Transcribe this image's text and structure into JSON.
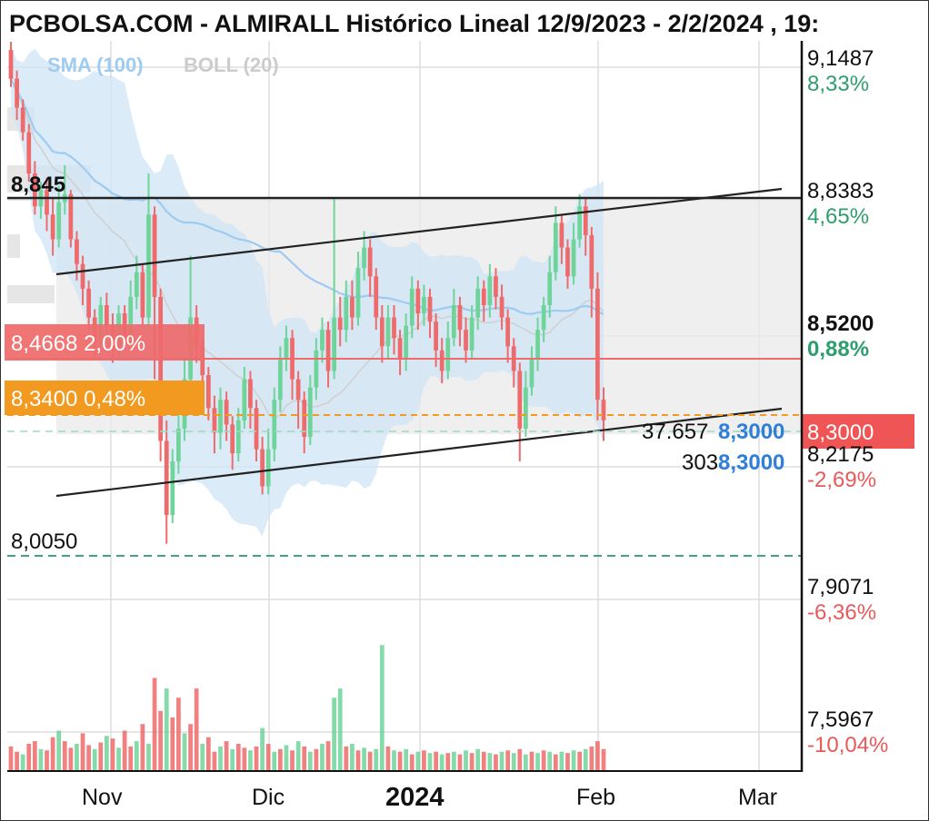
{
  "title": "PCBOLSA.COM - ALMIRALL Histórico Lineal 12/9/2023 - 2/2/2024 , 19:",
  "legend": {
    "sma": "SMA (100)",
    "boll": "BOLL (20)"
  },
  "colors": {
    "up": "#6fd49a",
    "down": "#ef6a6a",
    "sma": "#9ecbf1",
    "boll_fill": "#cfe4f6",
    "hline_red": "#ef6a6a",
    "hline_orange": "#f29a1f",
    "hline_green": "#3fa57a"
  },
  "chart_data": {
    "type": "candlestick",
    "ylim": [
      7.45,
      9.22
    ],
    "x_ticks": [
      "Nov",
      "Dic",
      "2024",
      "Feb",
      "Mar"
    ],
    "y_ticks": [
      {
        "value": "9,1487",
        "pct": "8,33%",
        "sign": "pos",
        "bold": false
      },
      {
        "value": "8,8383",
        "pct": "4,65%",
        "sign": "pos",
        "bold": false
      },
      {
        "value": "8,5200",
        "pct": "0,88%",
        "sign": "pos",
        "bold": true
      },
      {
        "value": "8,2175",
        "pct": "-2,69%",
        "sign": "neg",
        "bold": false
      },
      {
        "value": "7,9071",
        "pct": "-6,36%",
        "sign": "neg",
        "bold": false
      },
      {
        "value": "7,5967",
        "pct": "-10,04%",
        "sign": "neg",
        "bold": false
      }
    ],
    "candles": [
      [
        9.2,
        9.13,
        9.22,
        9.11
      ],
      [
        9.13,
        9.06,
        9.15,
        9.03
      ],
      [
        9.06,
        9.0,
        9.08,
        8.98
      ],
      [
        9.0,
        8.9,
        9.02,
        8.88
      ],
      [
        8.9,
        8.82,
        8.93,
        8.8
      ],
      [
        8.82,
        8.86,
        8.88,
        8.79
      ],
      [
        8.86,
        8.8,
        8.89,
        8.76
      ],
      [
        8.8,
        8.74,
        8.84,
        8.7
      ],
      [
        8.74,
        8.83,
        8.87,
        8.72
      ],
      [
        8.83,
        8.85,
        8.92,
        8.8
      ],
      [
        8.85,
        8.74,
        8.86,
        8.72
      ],
      [
        8.74,
        8.68,
        8.76,
        8.64
      ],
      [
        8.68,
        8.62,
        8.7,
        8.58
      ],
      [
        8.62,
        8.55,
        8.64,
        8.52
      ],
      [
        8.55,
        8.49,
        8.57,
        8.45
      ],
      [
        8.49,
        8.58,
        8.6,
        8.47
      ],
      [
        8.58,
        8.53,
        8.61,
        8.5
      ],
      [
        8.53,
        8.47,
        8.56,
        8.44
      ],
      [
        8.47,
        8.56,
        8.58,
        8.45
      ],
      [
        8.56,
        8.5,
        8.58,
        8.47
      ],
      [
        8.5,
        8.6,
        8.64,
        8.48
      ],
      [
        8.6,
        8.66,
        8.7,
        8.57
      ],
      [
        8.66,
        8.55,
        8.68,
        8.53
      ],
      [
        8.55,
        8.8,
        8.9,
        8.52
      ],
      [
        8.8,
        8.6,
        8.82,
        8.4
      ],
      [
        8.6,
        8.25,
        8.62,
        8.2
      ],
      [
        8.25,
        8.07,
        8.3,
        8.0
      ],
      [
        8.07,
        8.2,
        8.23,
        8.05
      ],
      [
        8.2,
        8.28,
        8.32,
        8.17
      ],
      [
        8.28,
        8.4,
        8.45,
        8.25
      ],
      [
        8.4,
        8.55,
        8.7,
        8.38
      ],
      [
        8.55,
        8.48,
        8.58,
        8.44
      ],
      [
        8.48,
        8.41,
        8.5,
        8.37
      ],
      [
        8.41,
        8.33,
        8.43,
        8.3
      ],
      [
        8.33,
        8.27,
        8.36,
        8.22
      ],
      [
        8.27,
        8.35,
        8.38,
        8.23
      ],
      [
        8.35,
        8.29,
        8.37,
        8.25
      ],
      [
        8.29,
        8.22,
        8.31,
        8.18
      ],
      [
        8.22,
        8.3,
        8.33,
        8.2
      ],
      [
        8.3,
        8.4,
        8.43,
        8.28
      ],
      [
        8.4,
        8.33,
        8.42,
        8.28
      ],
      [
        8.33,
        8.23,
        8.35,
        8.2
      ],
      [
        8.23,
        8.14,
        8.26,
        8.12
      ],
      [
        8.14,
        8.23,
        8.28,
        8.12
      ],
      [
        8.23,
        8.35,
        8.38,
        8.2
      ],
      [
        8.35,
        8.45,
        8.48,
        8.32
      ],
      [
        8.45,
        8.5,
        8.53,
        8.42
      ],
      [
        8.5,
        8.4,
        8.52,
        8.35
      ],
      [
        8.4,
        8.35,
        8.42,
        8.28
      ],
      [
        8.35,
        8.26,
        8.37,
        8.22
      ],
      [
        8.26,
        8.38,
        8.41,
        8.24
      ],
      [
        8.38,
        8.47,
        8.5,
        8.35
      ],
      [
        8.47,
        8.52,
        8.55,
        8.44
      ],
      [
        8.52,
        8.42,
        8.54,
        8.38
      ],
      [
        8.42,
        8.55,
        8.84,
        8.4
      ],
      [
        8.55,
        8.52,
        8.6,
        8.48
      ],
      [
        8.52,
        8.6,
        8.64,
        8.49
      ],
      [
        8.6,
        8.55,
        8.64,
        8.52
      ],
      [
        8.55,
        8.67,
        8.71,
        8.53
      ],
      [
        8.67,
        8.72,
        8.76,
        8.64
      ],
      [
        8.72,
        8.65,
        8.74,
        8.6
      ],
      [
        8.65,
        8.55,
        8.67,
        8.52
      ],
      [
        8.55,
        8.48,
        8.58,
        8.44
      ],
      [
        8.48,
        8.55,
        8.58,
        8.45
      ],
      [
        8.55,
        8.5,
        8.58,
        8.46
      ],
      [
        8.5,
        8.45,
        8.52,
        8.41
      ],
      [
        8.45,
        8.53,
        8.56,
        8.42
      ],
      [
        8.53,
        8.62,
        8.65,
        8.5
      ],
      [
        8.62,
        8.56,
        8.64,
        8.52
      ],
      [
        8.56,
        8.6,
        8.63,
        8.53
      ],
      [
        8.6,
        8.54,
        8.62,
        8.5
      ],
      [
        8.54,
        8.47,
        8.56,
        8.43
      ],
      [
        8.47,
        8.42,
        8.5,
        8.39
      ],
      [
        8.42,
        8.5,
        8.54,
        8.4
      ],
      [
        8.5,
        8.58,
        8.62,
        8.48
      ],
      [
        8.58,
        8.52,
        8.6,
        8.48
      ],
      [
        8.52,
        8.47,
        8.55,
        8.44
      ],
      [
        8.47,
        8.55,
        8.58,
        8.45
      ],
      [
        8.55,
        8.62,
        8.65,
        8.52
      ],
      [
        8.62,
        8.58,
        8.64,
        8.54
      ],
      [
        8.58,
        8.65,
        8.68,
        8.55
      ],
      [
        8.65,
        8.6,
        8.67,
        8.57
      ],
      [
        8.6,
        8.55,
        8.63,
        8.52
      ],
      [
        8.55,
        8.48,
        8.57,
        8.44
      ],
      [
        8.48,
        8.42,
        8.5,
        8.38
      ],
      [
        8.42,
        8.28,
        8.44,
        8.2
      ],
      [
        8.28,
        8.38,
        8.42,
        8.26
      ],
      [
        8.38,
        8.45,
        8.48,
        8.36
      ],
      [
        8.45,
        8.52,
        8.55,
        8.42
      ],
      [
        8.52,
        8.58,
        8.6,
        8.49
      ],
      [
        8.58,
        8.66,
        8.7,
        8.55
      ],
      [
        8.66,
        8.78,
        8.82,
        8.64
      ],
      [
        8.78,
        8.72,
        8.8,
        8.68
      ],
      [
        8.72,
        8.65,
        8.74,
        8.62
      ],
      [
        8.65,
        8.74,
        8.78,
        8.63
      ],
      [
        8.74,
        8.82,
        8.85,
        8.72
      ],
      [
        8.82,
        8.75,
        8.84,
        8.7
      ],
      [
        8.75,
        8.62,
        8.77,
        8.55
      ],
      [
        8.62,
        8.35,
        8.66,
        8.3
      ],
      [
        8.35,
        8.3,
        8.38,
        8.25
      ]
    ],
    "volume": [
      [
        "d",
        0.18
      ],
      [
        "d",
        0.14
      ],
      [
        "u",
        0.12
      ],
      [
        "d",
        0.2
      ],
      [
        "d",
        0.22
      ],
      [
        "u",
        0.16
      ],
      [
        "d",
        0.15
      ],
      [
        "d",
        0.25
      ],
      [
        "u",
        0.3
      ],
      [
        "d",
        0.22
      ],
      [
        "d",
        0.17
      ],
      [
        "u",
        0.2
      ],
      [
        "d",
        0.28
      ],
      [
        "d",
        0.19
      ],
      [
        "u",
        0.16
      ],
      [
        "d",
        0.21
      ],
      [
        "u",
        0.26
      ],
      [
        "d",
        0.24
      ],
      [
        "u",
        0.17
      ],
      [
        "d",
        0.3
      ],
      [
        "d",
        0.18
      ],
      [
        "u",
        0.22
      ],
      [
        "d",
        0.35
      ],
      [
        "u",
        0.2
      ],
      [
        "d",
        0.7
      ],
      [
        "d",
        0.45
      ],
      [
        "u",
        0.62
      ],
      [
        "d",
        0.4
      ],
      [
        "d",
        0.55
      ],
      [
        "u",
        0.28
      ],
      [
        "d",
        0.35
      ],
      [
        "d",
        0.62
      ],
      [
        "u",
        0.2
      ],
      [
        "d",
        0.25
      ],
      [
        "d",
        0.14
      ],
      [
        "u",
        0.18
      ],
      [
        "d",
        0.22
      ],
      [
        "u",
        0.16
      ],
      [
        "d",
        0.2
      ],
      [
        "d",
        0.17
      ],
      [
        "u",
        0.15
      ],
      [
        "d",
        0.18
      ],
      [
        "u",
        0.32
      ],
      [
        "d",
        0.2
      ],
      [
        "u",
        0.14
      ],
      [
        "d",
        0.16
      ],
      [
        "u",
        0.19
      ],
      [
        "d",
        0.15
      ],
      [
        "u",
        0.22
      ],
      [
        "d",
        0.18
      ],
      [
        "u",
        0.14
      ],
      [
        "d",
        0.16
      ],
      [
        "u",
        0.2
      ],
      [
        "d",
        0.22
      ],
      [
        "u",
        0.55
      ],
      [
        "u",
        0.62
      ],
      [
        "d",
        0.18
      ],
      [
        "u",
        0.2
      ],
      [
        "d",
        0.15
      ],
      [
        "u",
        0.17
      ],
      [
        "d",
        0.14
      ],
      [
        "u",
        0.16
      ],
      [
        "u",
        0.95
      ],
      [
        "d",
        0.18
      ],
      [
        "u",
        0.15
      ],
      [
        "d",
        0.14
      ],
      [
        "u",
        0.16
      ],
      [
        "d",
        0.12
      ],
      [
        "u",
        0.14
      ],
      [
        "d",
        0.15
      ],
      [
        "u",
        0.13
      ],
      [
        "d",
        0.14
      ],
      [
        "u",
        0.12
      ],
      [
        "d",
        0.13
      ],
      [
        "u",
        0.14
      ],
      [
        "d",
        0.12
      ],
      [
        "u",
        0.15
      ],
      [
        "d",
        0.13
      ],
      [
        "u",
        0.16
      ],
      [
        "d",
        0.14
      ],
      [
        "u",
        0.13
      ],
      [
        "d",
        0.12
      ],
      [
        "u",
        0.14
      ],
      [
        "d",
        0.15
      ],
      [
        "u",
        0.13
      ],
      [
        "d",
        0.16
      ],
      [
        "u",
        0.12
      ],
      [
        "d",
        0.14
      ],
      [
        "u",
        0.13
      ],
      [
        "d",
        0.15
      ],
      [
        "u",
        0.14
      ],
      [
        "d",
        0.12
      ],
      [
        "u",
        0.14
      ],
      [
        "d",
        0.13
      ],
      [
        "u",
        0.15
      ],
      [
        "d",
        0.14
      ],
      [
        "u",
        0.16
      ],
      [
        "d",
        0.18
      ],
      [
        "d",
        0.22
      ],
      [
        "d",
        0.16
      ]
    ],
    "annotations": {
      "left_label": "8,845",
      "red_level": {
        "text": "8,4668  2,00%",
        "value": 8.4668
      },
      "orange_level": {
        "text": "8,3400  0,48%",
        "value": 8.34
      },
      "green_level": {
        "text": "8,0050",
        "value": 8.005
      },
      "last_price": "8,3000",
      "vol_label": "37.657",
      "vol_value": "8,3000",
      "shares_label": "303",
      "shares_value": "8,3000"
    }
  }
}
